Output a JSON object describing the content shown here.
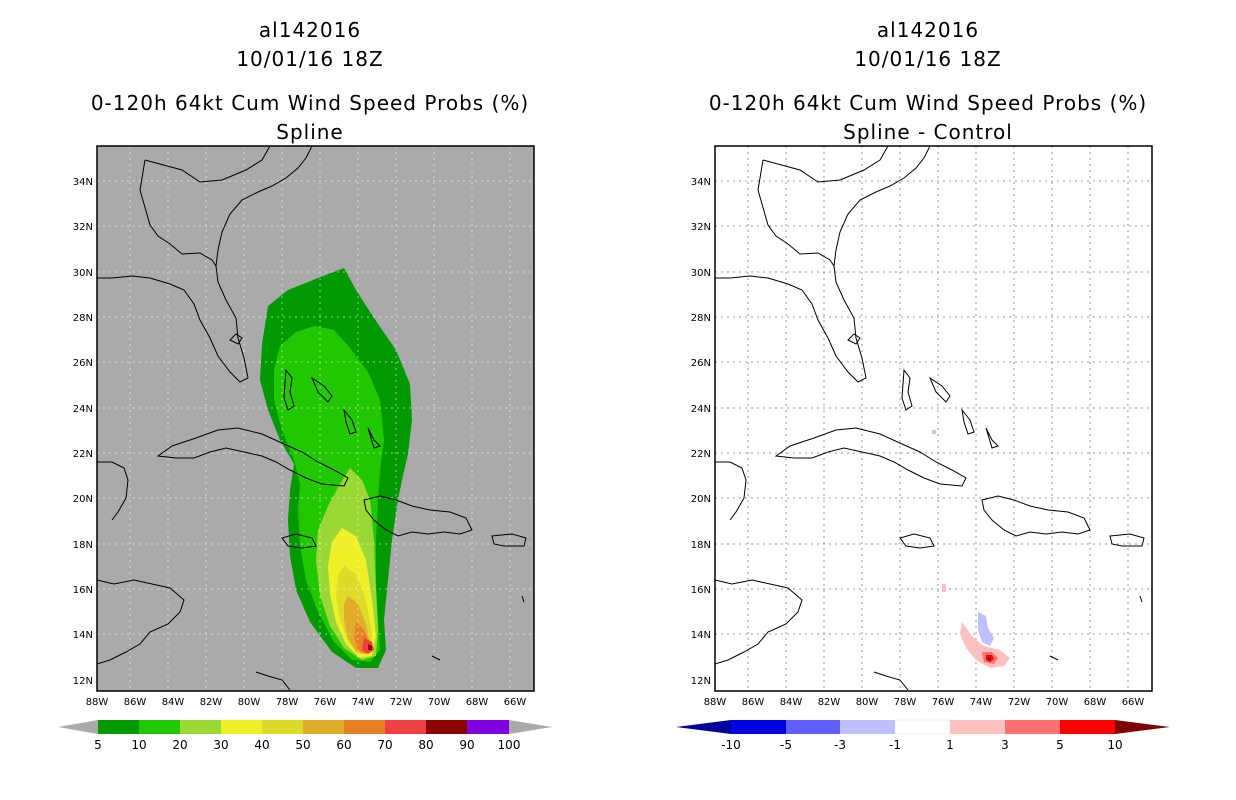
{
  "left_panel": {
    "storm_id": "al142016",
    "datetime": "10/01/16 18Z",
    "product": "0-120h 64kt Cum Wind Speed Probs (%)",
    "subtitle": "Spline",
    "colorbar": {
      "labels": [
        "5",
        "10",
        "20",
        "30",
        "40",
        "50",
        "60",
        "70",
        "80",
        "90",
        "100"
      ],
      "colors": [
        "#009a00",
        "#21c800",
        "#9ad836",
        "#f0f028",
        "#dcdc28",
        "#e0ac2a",
        "#e88024",
        "#f04040",
        "#8c0000",
        "#8000e0"
      ],
      "under_color": "#aaaaaa",
      "over_color": "#aaaaaa"
    },
    "background_color": "#aaaaaa"
  },
  "right_panel": {
    "storm_id": "al142016",
    "datetime": "10/01/16 18Z",
    "product": "0-120h 64kt Cum Wind Speed Probs (%)",
    "subtitle": "Spline - Control",
    "colorbar": {
      "labels": [
        "-10",
        "-5",
        "-3",
        "-1",
        "1",
        "3",
        "5",
        "10"
      ],
      "colors": [
        "#0000e0",
        "#6060ff",
        "#c0c0ff",
        "#ffffff",
        "#ffc0c0",
        "#ff7070",
        "#ff0000"
      ],
      "under_color": "#00009c",
      "over_color": "#800000"
    },
    "background_color": "#ffffff"
  },
  "axes": {
    "lat_labels": [
      "34N",
      "32N",
      "30N",
      "28N",
      "26N",
      "24N",
      "22N",
      "20N",
      "18N",
      "16N",
      "14N",
      "12N"
    ],
    "lon_labels": [
      "88W",
      "86W",
      "84W",
      "82W",
      "80W",
      "78W",
      "76W",
      "74W",
      "72W",
      "70W",
      "68W",
      "66W"
    ],
    "lat_range": [
      11.5,
      35.5
    ],
    "lon_range": [
      -88,
      -65
    ]
  }
}
